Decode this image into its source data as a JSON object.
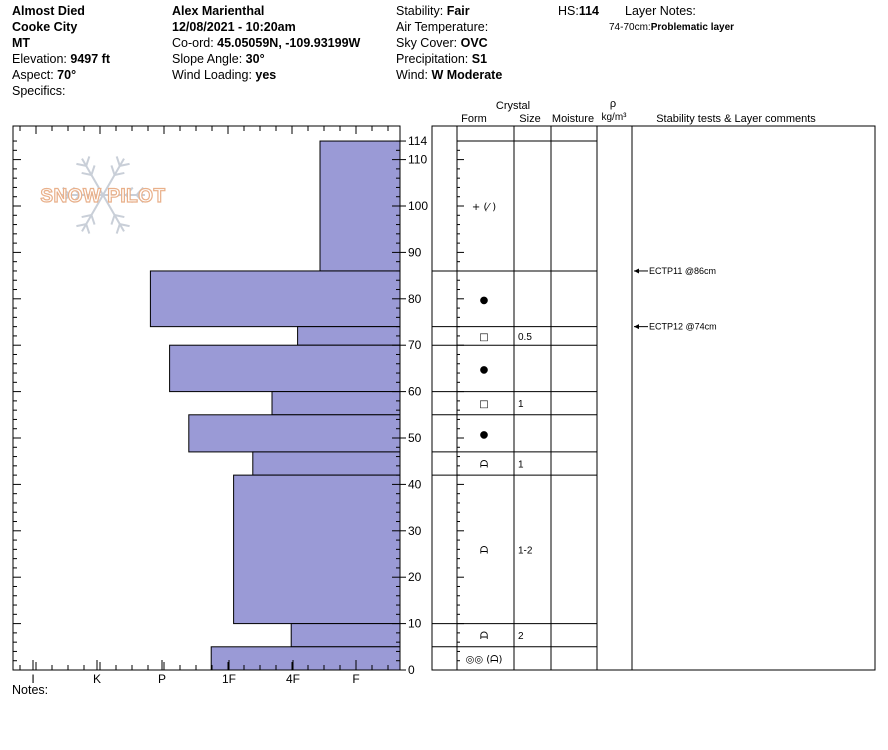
{
  "header": {
    "col1": {
      "title": "Almost Died",
      "location": "Cooke City",
      "state": "MT",
      "elevation_label": "Elevation: ",
      "elevation_value": "9497 ft",
      "aspect_label": "Aspect: ",
      "aspect_value": "70°",
      "specifics_label": "Specifics:"
    },
    "col2": {
      "observer": "Alex Marienthal",
      "datetime": "12/08/2021 - 10:20am",
      "coord_label": "Co-ord: ",
      "coord_value": "45.05059N, -109.93199W",
      "slope_label": "Slope Angle: ",
      "slope_value": "30°",
      "wind_loading_label": "Wind Loading: ",
      "wind_loading_value": "yes"
    },
    "col3": {
      "stability_label": "Stability: ",
      "stability_value": "Fair",
      "air_temp_label": "Air Temperature:",
      "sky_label": "Sky Cover: ",
      "sky_value": "OVC",
      "precip_label": "Precipitation: ",
      "precip_value": "S1",
      "wind_label": "Wind: ",
      "wind_value": "W Moderate"
    },
    "hs_label": "HS:",
    "hs_value": "114",
    "layer_notes_label": "Layer Notes:",
    "layer_note_range": "74-70cm:",
    "layer_note_text": "Problematic layer"
  },
  "logo_text": "SNOW PILOT",
  "notes_label": "Notes:",
  "table_headers": {
    "crystal": "Crystal",
    "form": "Form",
    "size": "Size",
    "moisture": "Moisture",
    "rho": "ρ",
    "density_unit": "kg/m³",
    "comments": "Stability tests & Layer comments"
  },
  "chart_data": {
    "type": "bar",
    "description": "Snow profile hand hardness by depth",
    "y_axis": {
      "min": 0,
      "max": 114,
      "ticks": [
        0,
        10,
        20,
        30,
        40,
        50,
        60,
        70,
        80,
        90,
        100,
        110,
        114
      ]
    },
    "x_axis": {
      "categories": [
        "I",
        "K",
        "P",
        "1F",
        "4F",
        "F"
      ]
    },
    "bar_color": "#9a9ad6",
    "hardness_layers": [
      {
        "top": 114,
        "bottom": 86,
        "hardness_index": 1.25
      },
      {
        "top": 86,
        "bottom": 74,
        "hardness_index": 3.9
      },
      {
        "top": 74,
        "bottom": 70,
        "hardness_index": 1.6
      },
      {
        "top": 70,
        "bottom": 60,
        "hardness_index": 3.6
      },
      {
        "top": 60,
        "bottom": 55,
        "hardness_index": 2.0
      },
      {
        "top": 55,
        "bottom": 47,
        "hardness_index": 3.3
      },
      {
        "top": 47,
        "bottom": 42,
        "hardness_index": 2.3
      },
      {
        "top": 42,
        "bottom": 10,
        "hardness_index": 2.6
      },
      {
        "top": 10,
        "bottom": 5,
        "hardness_index": 1.7
      },
      {
        "top": 5,
        "bottom": 0,
        "hardness_index": 2.95
      }
    ],
    "layers": [
      {
        "top": 114,
        "bottom": 86,
        "form": "+ (⁄ )",
        "size": ""
      },
      {
        "top": 86,
        "bottom": 74,
        "form": "●",
        "size": ""
      },
      {
        "top": 74,
        "bottom": 70,
        "form": "□",
        "size": "0.5"
      },
      {
        "top": 70,
        "bottom": 60,
        "form": "●",
        "size": ""
      },
      {
        "top": 60,
        "bottom": 55,
        "form": "□",
        "size": "1"
      },
      {
        "top": 55,
        "bottom": 47,
        "form": "●",
        "size": ""
      },
      {
        "top": 47,
        "bottom": 42,
        "form": "ᗩ",
        "size": "1"
      },
      {
        "top": 42,
        "bottom": 10,
        "form": "ᗩ",
        "size": "1-2"
      },
      {
        "top": 10,
        "bottom": 5,
        "form": "ᗩ",
        "size": "2"
      },
      {
        "top": 5,
        "bottom": 0,
        "form": "◎◎ (ᗩ)",
        "size": ""
      }
    ],
    "stability_tests": [
      {
        "depth": 86,
        "label": "ECTP11 @86cm"
      },
      {
        "depth": 74,
        "label": "ECTP12 @74cm"
      }
    ]
  }
}
